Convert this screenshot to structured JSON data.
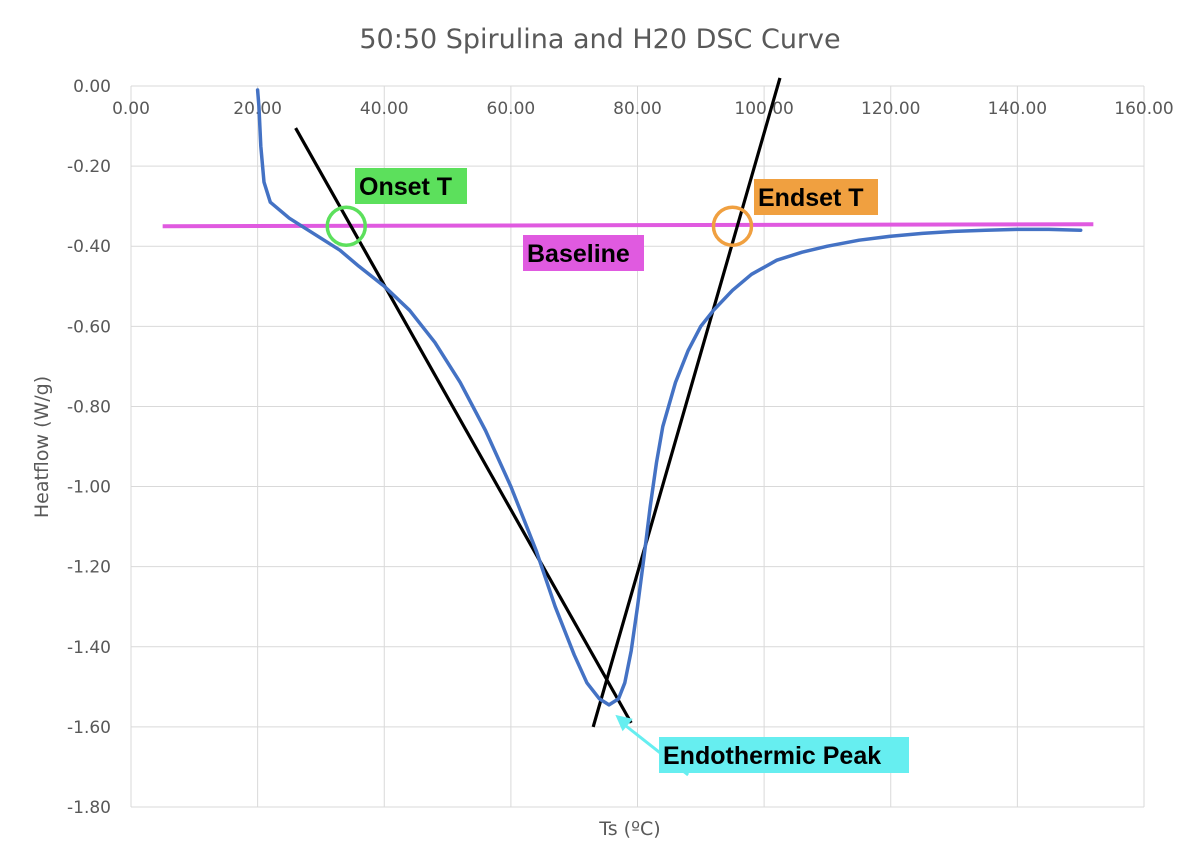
{
  "chart_data": {
    "type": "line",
    "title": "50:50 Spirulina and H20 DSC Curve",
    "xlabel": "Ts (ºC)",
    "ylabel": "Heatflow (W/g)",
    "xlim": [
      0,
      160
    ],
    "ylim": [
      -1.8,
      0
    ],
    "x_ticks": [
      0,
      20,
      40,
      60,
      80,
      100,
      120,
      140,
      160
    ],
    "x_tick_labels": [
      "0.00",
      "20.00",
      "40.00",
      "60.00",
      "80.00",
      "100.00",
      "120.00",
      "140.00",
      "160.00"
    ],
    "y_ticks": [
      0,
      -0.2,
      -0.4,
      -0.6,
      -0.8,
      -1.0,
      -1.2,
      -1.4,
      -1.6,
      -1.8
    ],
    "y_tick_labels": [
      "0.00",
      "-0.20",
      "-0.40",
      "-0.60",
      "-0.80",
      "-1.00",
      "-1.20",
      "-1.40",
      "-1.60",
      "-1.80"
    ],
    "grid": true,
    "series": [
      {
        "color": "#4472c4",
        "x": [
          20.0,
          20.2,
          20.5,
          21.0,
          22.0,
          23.5,
          25.0,
          27.0,
          30.0,
          33.0,
          36.0,
          40.0,
          44.0,
          48.0,
          52.0,
          56.0,
          60.0,
          64.0,
          67.0,
          70.0,
          72.0,
          74.0,
          75.5,
          77.0,
          78.0,
          79.0,
          80.0,
          81.0,
          82.0,
          83.0,
          84.0,
          86.0,
          88.0,
          90.0,
          92.0,
          95.0,
          98.0,
          102.0,
          106.0,
          110.0,
          115.0,
          120.0,
          125.0,
          130.0,
          135.0,
          140.0,
          145.0,
          150.0
        ],
        "y": [
          -0.01,
          -0.05,
          -0.15,
          -0.24,
          -0.29,
          -0.31,
          -0.33,
          -0.35,
          -0.38,
          -0.41,
          -0.45,
          -0.5,
          -0.56,
          -0.64,
          -0.74,
          -0.86,
          -1.0,
          -1.16,
          -1.3,
          -1.42,
          -1.49,
          -1.53,
          -1.545,
          -1.53,
          -1.49,
          -1.41,
          -1.3,
          -1.18,
          -1.05,
          -0.94,
          -0.85,
          -0.74,
          -0.66,
          -0.6,
          -0.56,
          -0.51,
          -0.47,
          -0.435,
          -0.415,
          -0.4,
          -0.385,
          -0.375,
          -0.368,
          -0.363,
          -0.36,
          -0.358,
          -0.358,
          -0.36
        ]
      }
    ],
    "reference_lines": [
      {
        "name": "baseline",
        "color": "#e05ae0",
        "x": [
          5.0,
          152.0
        ],
        "y": [
          -0.35,
          -0.345
        ]
      },
      {
        "name": "onset-tangent",
        "color": "#000000",
        "x": [
          26.0,
          79.0
        ],
        "y": [
          -0.105,
          -1.59
        ]
      },
      {
        "name": "endset-tangent",
        "color": "#000000",
        "x": [
          73.0,
          102.5
        ],
        "y": [
          -1.6,
          0.02
        ]
      }
    ],
    "annotations": [
      {
        "text": "Onset T",
        "color": "#5ce05c"
      },
      {
        "text": "Endset T",
        "color": "#f0a040"
      },
      {
        "text": "Baseline",
        "color": "#e05ae0"
      },
      {
        "text": "Endothermic Peak",
        "color": "#66eef0"
      }
    ],
    "markers": [
      {
        "name": "onset",
        "x": 34.0,
        "y": -0.35,
        "color": "#5ce05c"
      },
      {
        "name": "endset",
        "x": 95.0,
        "y": -0.35,
        "color": "#f0a040"
      }
    ],
    "arrow": {
      "from": [
        88.0,
        -1.72
      ],
      "to": [
        76.5,
        -1.57
      ],
      "color": "#66eef0"
    }
  }
}
